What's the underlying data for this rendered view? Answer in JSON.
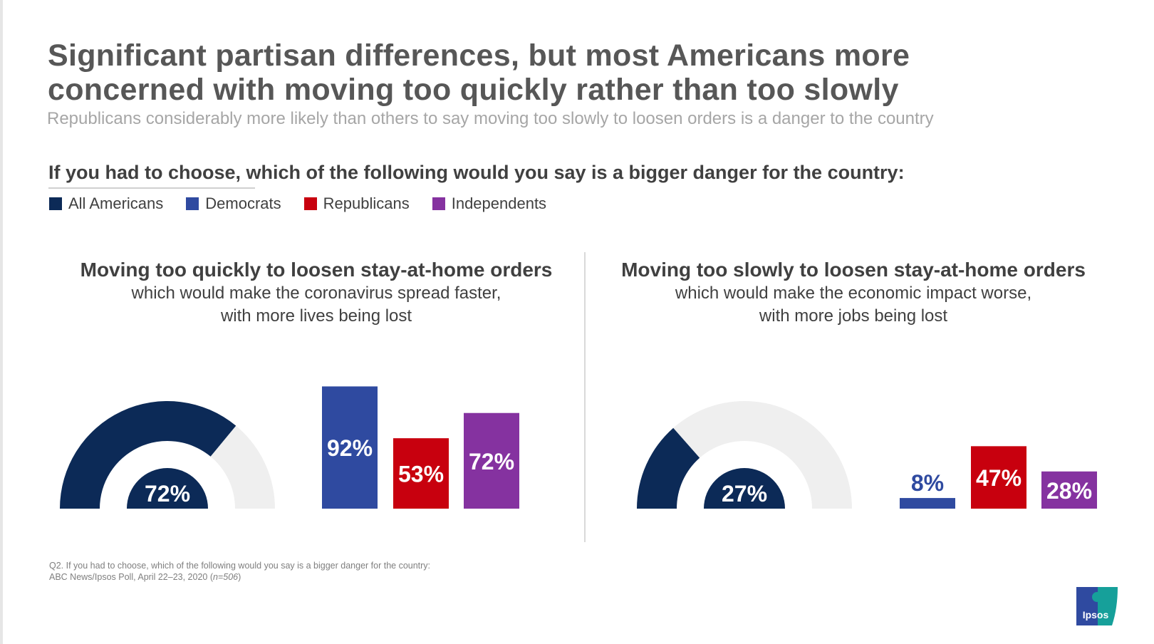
{
  "title": "Significant partisan differences, but most Americans more concerned with moving too quickly rather than too slowly",
  "title_lines": [
    "Significant partisan differences, but most Americans more",
    "concerned with moving too quickly rather than too slowly"
  ],
  "subtitle": "Republicans considerably more likely than others to say moving too slowly to loosen orders is a danger to the country",
  "question": "If you had to choose, which of the following would you say is a bigger danger for the country:",
  "legend": [
    {
      "label": "All Americans",
      "color": "#0c2a57"
    },
    {
      "label": "Democrats",
      "color": "#2f4aa0"
    },
    {
      "label": "Republicans",
      "color": "#c8000e"
    },
    {
      "label": "Independents",
      "color": "#8532a0"
    }
  ],
  "panels": [
    {
      "heading": "Moving too quickly to loosen stay-at-home orders",
      "sub1": "which would make the coronavirus spread faster,",
      "sub2": "with more lives being lost"
    },
    {
      "heading": "Moving too slowly to loosen stay-at-home orders",
      "sub1": "which would make the economic impact worse,",
      "sub2": "with more jobs being lost"
    }
  ],
  "chart_data": [
    {
      "type": "gauge+bar",
      "panel": "Moving too quickly to loosen stay-at-home orders",
      "all_americans": 72,
      "all_americans_label": "72%",
      "categories": [
        "Democrats",
        "Republicans",
        "Independents"
      ],
      "values": [
        92,
        53,
        72
      ],
      "labels": [
        "92%",
        "53%",
        "72%"
      ],
      "ylim": [
        0,
        100
      ]
    },
    {
      "type": "gauge+bar",
      "panel": "Moving too slowly to loosen stay-at-home orders",
      "all_americans": 27,
      "all_americans_label": "27%",
      "categories": [
        "Democrats",
        "Republicans",
        "Independents"
      ],
      "values": [
        8,
        47,
        28
      ],
      "labels": [
        "8%",
        "47%",
        "28%"
      ],
      "ylim": [
        0,
        100
      ]
    }
  ],
  "colors": {
    "gauge_bg": "#efefef",
    "text_dark": "#404040"
  },
  "footnote": {
    "line1": "Q2. If you had to choose, which of the following would you say is a bigger danger for the country:",
    "line2_prefix": "ABC News/Ipsos Poll, April 22–23, 2020 (",
    "n": "n=506",
    "line2_suffix": ")"
  },
  "logo": {
    "text": "Ipsos"
  }
}
